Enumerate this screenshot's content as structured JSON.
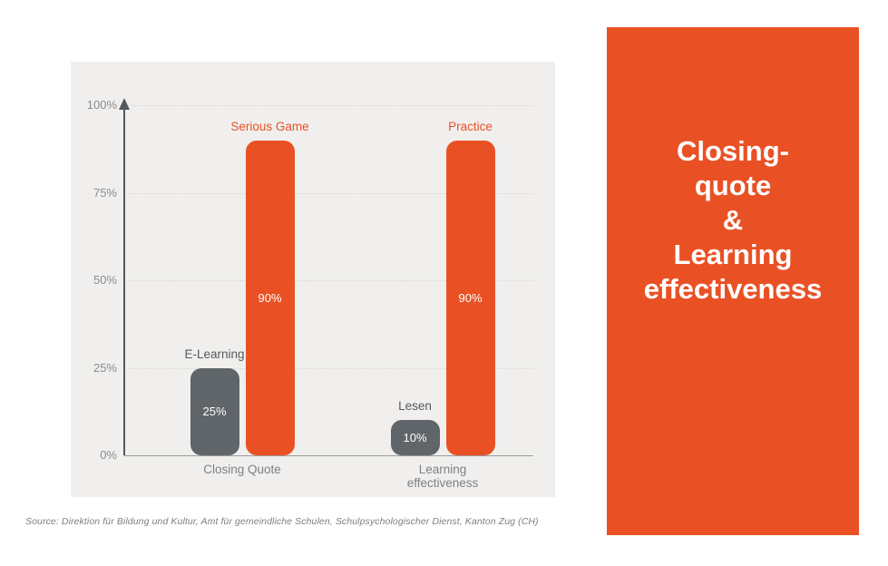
{
  "slide": {
    "source_note": "Source: Direktion für Bildung und Kultur, Amt für gemeindliche Schulen, Schulpsychologischer Dienst, Kanton Zug (CH)",
    "side_panel": {
      "title": "Closing-\nquote\n&\nLearning\neffectiveness",
      "background_color": "#E95125",
      "text_color": "#FFFFFF"
    }
  },
  "chart_data": {
    "type": "bar",
    "title": "Closing-quote & Learning effectiveness",
    "categories": [
      "Closing Quote",
      "Learning effectiveness"
    ],
    "groups": [
      {
        "category": "Closing Quote",
        "category_display": "Closing Quote",
        "bars": [
          {
            "label": "E-Learning",
            "value": 25,
            "value_label": "25%",
            "color": "#5F6569",
            "label_color": "#595959"
          },
          {
            "label": "Serious Game",
            "value": 90,
            "value_label": "90%",
            "color": "#E95125",
            "label_color": "#E95125"
          }
        ]
      },
      {
        "category": "Learning effectiveness",
        "category_display": "Learning\neffectiveness",
        "bars": [
          {
            "label": "Lesen",
            "value": 10,
            "value_label": "10%",
            "color": "#5F6569",
            "label_color": "#595959"
          },
          {
            "label": "Practice",
            "value": 90,
            "value_label": "90%",
            "color": "#E95125",
            "label_color": "#E95125"
          }
        ]
      }
    ],
    "ylim": [
      0,
      100
    ],
    "yticks": [
      0,
      25,
      50,
      75,
      100
    ],
    "ytick_labels": [
      "0%",
      "25%",
      "50%",
      "75%",
      "100%"
    ],
    "grid": true,
    "legend": "none",
    "xlabel": "",
    "ylabel": "",
    "panel_background": "#F0EFED",
    "axis_color": "#54585C",
    "baseline_color": "#9B9B9B",
    "grid_color": "#D9D6D2",
    "tick_color": "#8C8C8C",
    "category_color": "#808080",
    "highlight_color": "#E95125",
    "muted_color": "#5F6569"
  }
}
